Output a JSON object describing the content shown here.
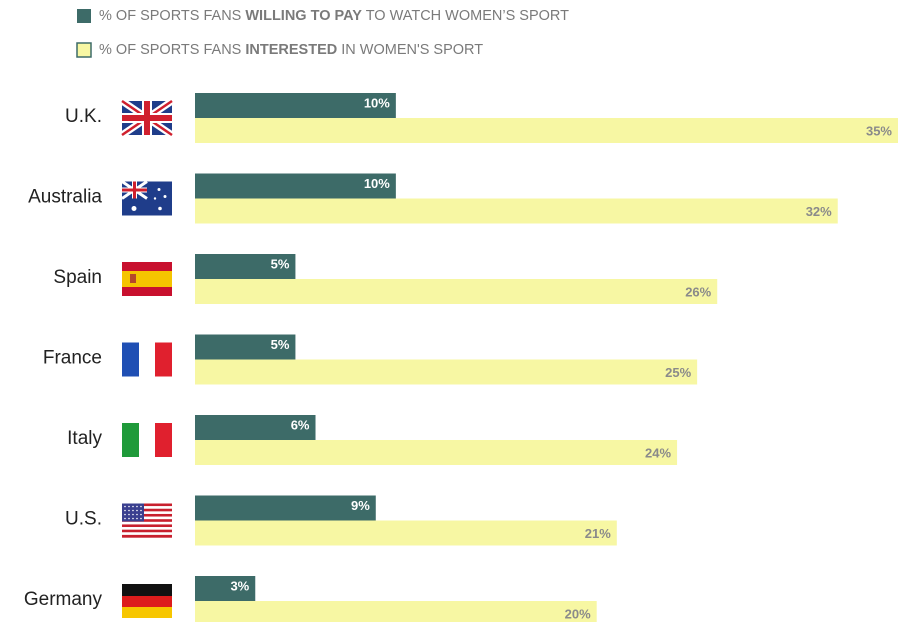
{
  "chart_data": {
    "type": "bar",
    "orientation": "horizontal",
    "categories": [
      "U.K.",
      "Australia",
      "Spain",
      "France",
      "Italy",
      "U.S.",
      "Germany"
    ],
    "series": [
      {
        "name": "% OF SPORTS FANS WILLING TO PAY TO WATCH WOMEN’S SPORT",
        "emphasis": "WILLING TO PAY",
        "color": "#3d6b68",
        "values": [
          10,
          10,
          5,
          5,
          6,
          9,
          3
        ],
        "value_labels": [
          "10%",
          "10%",
          "5%",
          "5%",
          "6%",
          "9%",
          "3%"
        ]
      },
      {
        "name": "% OF SPORTS FANS INTERESTED IN WOMEN'S SPORT",
        "emphasis": "INTERESTED",
        "color": "#f7f7a3",
        "values": [
          35,
          32,
          26,
          25,
          24,
          21,
          20
        ],
        "value_labels": [
          "35%",
          "32%",
          "26%",
          "25%",
          "24%",
          "21%",
          "20%"
        ]
      }
    ],
    "xlim": [
      0,
      35
    ]
  }
}
